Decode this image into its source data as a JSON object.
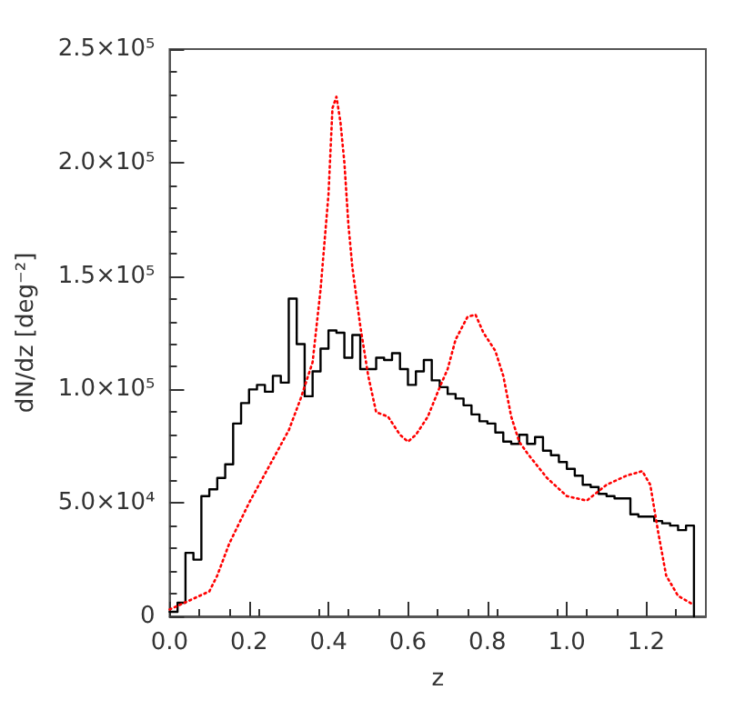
{
  "chart_data": {
    "type": "step",
    "xlabel": "z",
    "ylabel": "dN/dz [deg⁻²]",
    "xlim": [
      0,
      1.35
    ],
    "ylim": [
      0,
      250000
    ],
    "xticks": [
      {
        "value": 0,
        "label": "0.0"
      },
      {
        "value": 0.2,
        "label": "0.2"
      },
      {
        "value": 0.4,
        "label": "0.4"
      },
      {
        "value": 0.6,
        "label": "0.6"
      },
      {
        "value": 0.8,
        "label": "0.8"
      },
      {
        "value": 1.0,
        "label": "1.0"
      },
      {
        "value": 1.2,
        "label": "1.2"
      }
    ],
    "yticks": [
      0,
      {
        "value": 50000,
        "label": "5.0×10⁴"
      },
      {
        "value": 100000,
        "label": "1.0×10⁵"
      },
      {
        "value": 150000,
        "label": "1.5×10⁵"
      },
      {
        "value": 200000,
        "label": "2.0×10⁵"
      },
      {
        "value": 250000,
        "label": "2.5×10⁵"
      }
    ],
    "series": [
      {
        "type": "step",
        "color": "#000000",
        "line_style": "solid",
        "x": [
          0,
          0.02,
          0.04,
          0.06,
          0.08,
          0.1,
          0.12,
          0.14,
          0.16,
          0.18,
          0.2,
          0.22,
          0.24,
          0.26,
          0.28,
          0.3,
          0.32,
          0.34,
          0.36,
          0.38,
          0.4,
          0.42,
          0.44,
          0.46,
          0.48,
          0.5,
          0.52,
          0.54,
          0.56,
          0.58,
          0.6,
          0.62,
          0.64,
          0.66,
          0.68,
          0.7,
          0.72,
          0.74,
          0.76,
          0.78,
          0.8,
          0.82,
          0.84,
          0.86,
          0.88,
          0.9,
          0.92,
          0.94,
          0.96,
          0.98,
          1.0,
          1.02,
          1.04,
          1.06,
          1.08,
          1.1,
          1.12,
          1.14,
          1.16,
          1.18,
          1.2,
          1.22,
          1.24,
          1.26,
          1.28,
          1.3,
          1.32
        ],
        "values": [
          2000,
          6000,
          28000,
          25000,
          53000,
          56000,
          61000,
          67000,
          85000,
          94000,
          100000,
          102000,
          99000,
          106000,
          103000,
          140000,
          120000,
          97000,
          108000,
          118000,
          126000,
          125000,
          114000,
          124000,
          109000,
          109000,
          114000,
          113000,
          116000,
          109000,
          102000,
          108000,
          113000,
          104000,
          101000,
          98000,
          96000,
          93000,
          89000,
          86000,
          85000,
          81000,
          77000,
          76000,
          80000,
          76000,
          79000,
          73000,
          71000,
          68000,
          65000,
          62000,
          58000,
          57000,
          54000,
          53000,
          52000,
          52000,
          45000,
          44000,
          44000,
          42000,
          41000,
          40000,
          38000,
          40000,
          0
        ]
      },
      {
        "type": "line",
        "color": "#ff0000",
        "line_style": "dotted",
        "x": [
          0,
          0.05,
          0.1,
          0.12,
          0.15,
          0.2,
          0.25,
          0.3,
          0.33,
          0.36,
          0.38,
          0.4,
          0.41,
          0.42,
          0.43,
          0.44,
          0.45,
          0.46,
          0.48,
          0.5,
          0.52,
          0.55,
          0.58,
          0.6,
          0.62,
          0.65,
          0.68,
          0.7,
          0.72,
          0.75,
          0.77,
          0.79,
          0.82,
          0.84,
          0.86,
          0.88,
          0.9,
          0.95,
          1.0,
          1.05,
          1.1,
          1.15,
          1.19,
          1.21,
          1.23,
          1.25,
          1.28,
          1.32
        ],
        "values": [
          3000,
          7000,
          11000,
          18000,
          32000,
          50000,
          66000,
          82000,
          96000,
          112000,
          144000,
          186000,
          224000,
          229000,
          218000,
          200000,
          173000,
          154000,
          128000,
          106000,
          90000,
          88000,
          80000,
          77000,
          80000,
          88000,
          101000,
          109000,
          122000,
          132000,
          133000,
          125000,
          117000,
          106000,
          88000,
          77000,
          72000,
          61000,
          53000,
          51000,
          58000,
          62000,
          64000,
          58000,
          37000,
          18000,
          9000,
          5000
        ]
      }
    ]
  }
}
